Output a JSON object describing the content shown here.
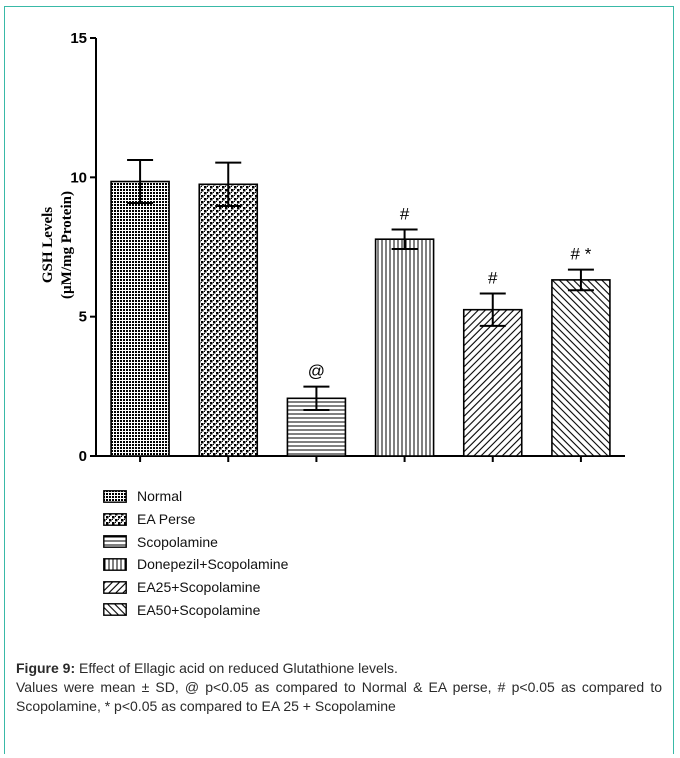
{
  "chart_data": {
    "type": "bar",
    "title": "",
    "xlabel": "",
    "ylabel": [
      "GSH Levels",
      "(µM/mg Protein)"
    ],
    "ylim": [
      0,
      15
    ],
    "yticks": [
      "0",
      "5",
      "10",
      "15"
    ],
    "categories": [
      "Normal",
      "EA Perse",
      "Scopolamine",
      "Donepezil+Scopolamine",
      "EA25+Scopolamine",
      "EA50+Scopolamine"
    ],
    "values": [
      9.85,
      9.75,
      2.07,
      7.78,
      5.25,
      6.32
    ],
    "errors": [
      0.77,
      0.78,
      0.42,
      0.35,
      0.58,
      0.37
    ],
    "annotations": [
      "",
      "",
      "@",
      "#",
      "#",
      "# *"
    ],
    "patterns": [
      "dense-grid",
      "checker",
      "horizontal-lines",
      "vertical-lines",
      "diagonal-up",
      "diagonal-down"
    ],
    "legend_position": "below",
    "grid": false,
    "colors": {
      "ink": "#000000",
      "frame": "#39b9a7",
      "background": "#ffffff"
    }
  },
  "caption": {
    "title": "Figure 9:",
    "title_text": " Effect of Ellagic acid on reduced Glutathione levels.",
    "note": "Values were mean ± SD, @ p<0.05 as compared to Normal & EA perse, # p<0.05 as compared to Scopolamine, * p<0.05 as compared to EA 25 + Scopolamine"
  }
}
